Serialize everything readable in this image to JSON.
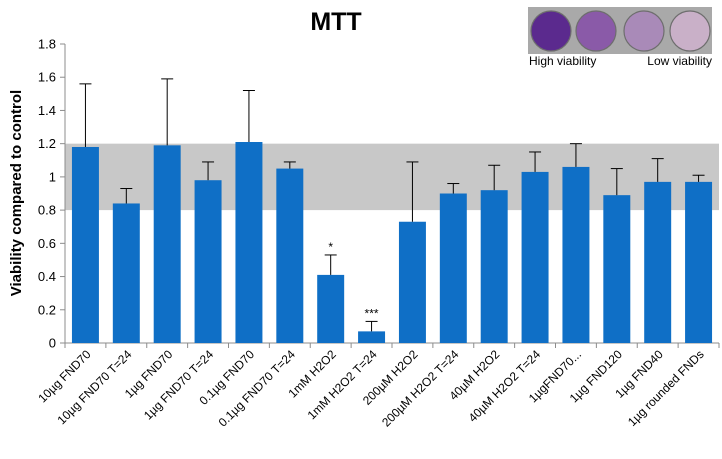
{
  "chart_data": {
    "type": "bar",
    "title": "MTT",
    "xlabel": "",
    "ylabel": "Viability compared to control",
    "ylim": [
      0,
      1.8
    ],
    "yticks": [
      "0",
      "0.2",
      "0.4",
      "0.6",
      "0.8",
      "1",
      "1.2",
      "1.4",
      "1.6",
      "1.8"
    ],
    "grid": false,
    "reference_band": [
      0.8,
      1.2
    ],
    "categories": [
      "10µg FND70",
      "10µg FND70 T=24",
      "1µg FND70",
      "1µg FND70 T=24",
      "0.1µg FND70",
      "0.1µg FND70 T=24",
      "1mM H2O2",
      "1mM H2O2 T=24",
      "200µM H2O2",
      "200µM H2O2 T=24",
      "40µM H2O2",
      "40µM H2O2 T=24",
      "1µgFND70...",
      "1µg FND120",
      "1µg FND40",
      "1µg rounded FNDs"
    ],
    "values": [
      1.18,
      0.84,
      1.19,
      0.98,
      1.21,
      1.05,
      0.41,
      0.07,
      0.73,
      0.9,
      0.92,
      1.03,
      1.06,
      0.89,
      0.97,
      0.97
    ],
    "error_upper": [
      0.38,
      0.09,
      0.4,
      0.11,
      0.31,
      0.04,
      0.12,
      0.06,
      0.36,
      0.06,
      0.15,
      0.12,
      0.14,
      0.16,
      0.14,
      0.04
    ],
    "significance": [
      "",
      "",
      "",
      "",
      "",
      "",
      "*",
      "***",
      "",
      "",
      "",
      "",
      "",
      "",
      "",
      ""
    ]
  },
  "inset": {
    "high_label": "High viability",
    "low_label": "Low viability",
    "well_colors": [
      "#5b2a8e",
      "#8a5aa8",
      "#a98ab8",
      "#c9b0c8"
    ]
  },
  "colors": {
    "bar": "#0f6fc6",
    "band": "#c8c8c8",
    "error": "#000000"
  }
}
